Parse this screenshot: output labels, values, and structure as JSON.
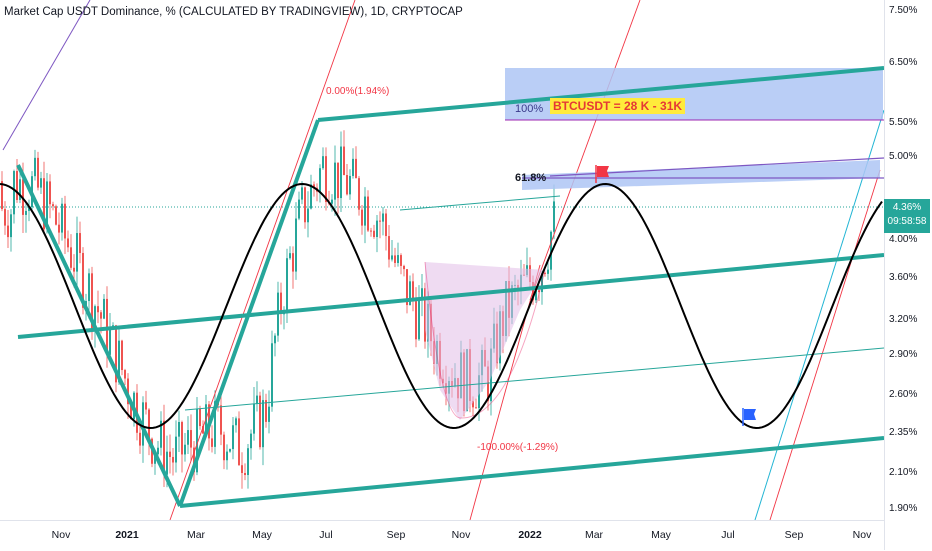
{
  "header": {
    "title": "Market Cap USDT Dominance, % (CALCULATED BY TRADINGVIEW), 1D, CRYPTOCAP"
  },
  "price_tag": {
    "value": "4.36%",
    "timer": "09:58:58"
  },
  "annotations": {
    "fib_top": "0.00%(1.94%)",
    "fib_bottom": "-100.00%(-1.29%)",
    "fib_61": "61.8%",
    "box_100": "100%",
    "btc_label": "BTCUSDT = 28 K - 31K"
  },
  "colors": {
    "channel": "#26a69a",
    "sine": "#000000",
    "up_candle": "#26a69a",
    "down_candle": "#ef5350",
    "fib_line": "#f23645",
    "blue_box": "#aec6f5",
    "purple_line": "#9c6ade",
    "cyan_line": "#22b5d4",
    "btc_label_bg": "#ffeb3b",
    "btc_label_text": "#e53935"
  },
  "icons": {
    "red_flag": "red-flag-icon",
    "blue_flag": "blue-flag-icon"
  },
  "chart_data": {
    "type": "line",
    "title": "Market Cap USDT Dominance, % (CALCULATED BY TRADINGVIEW), 1D, CRYPTOCAP",
    "y_scale": "log",
    "y_ticks": [
      "7.50%",
      "6.50%",
      "5.50%",
      "5.00%",
      "4.36%",
      "4.00%",
      "3.60%",
      "3.20%",
      "2.90%",
      "2.60%",
      "2.35%",
      "2.10%",
      "1.90%"
    ],
    "x_ticks": [
      "Nov",
      "2021",
      "Mar",
      "May",
      "Jul",
      "Sep",
      "Nov",
      "2022",
      "Mar",
      "May",
      "Jul",
      "Sep",
      "Nov"
    ],
    "last_value": 4.36,
    "series": [
      {
        "kind": "candles_close_approx",
        "x": [
          "2020-09-25",
          "2020-10-15",
          "2020-11-05",
          "2020-11-25",
          "2020-12-15",
          "2021-01-05",
          "2021-01-25",
          "2021-02-10",
          "2021-03-01",
          "2021-03-20",
          "2021-04-10",
          "2021-05-01",
          "2021-05-15",
          "2021-06-01",
          "2021-06-20",
          "2021-07-10",
          "2021-07-25",
          "2021-08-10",
          "2021-08-25",
          "2021-09-10",
          "2021-09-25",
          "2021-10-10",
          "2021-10-25",
          "2021-11-10",
          "2021-11-25",
          "2021-12-10",
          "2021-12-25",
          "2022-01-10"
        ],
        "values": [
          4.7,
          4.6,
          4.1,
          3.6,
          3.1,
          2.6,
          2.3,
          2.2,
          2.3,
          2.4,
          2.25,
          2.5,
          3.4,
          4.3,
          4.9,
          4.7,
          4.5,
          4.2,
          3.6,
          3.3,
          3.0,
          2.8,
          2.7,
          2.75,
          3.3,
          3.5,
          3.7,
          4.36
        ]
      }
    ]
  }
}
